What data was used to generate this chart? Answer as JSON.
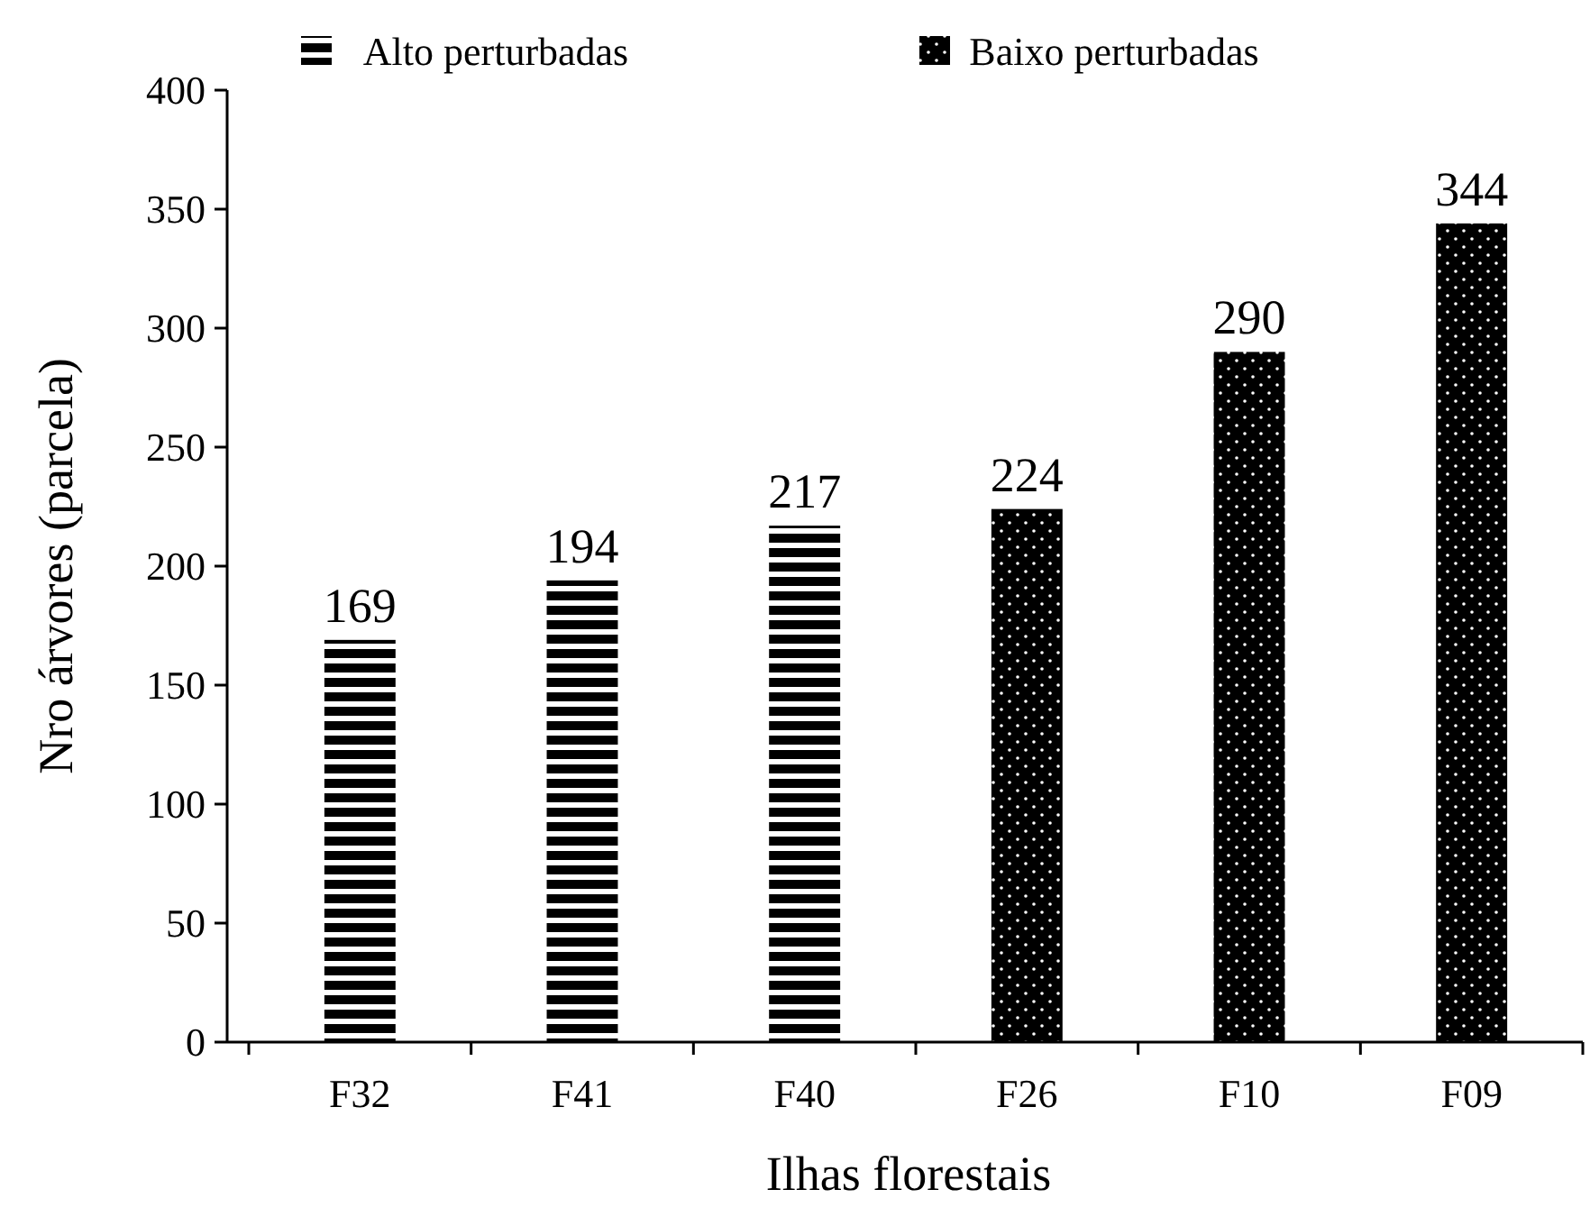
{
  "chart_data": {
    "type": "bar",
    "xlabel": "Ilhas florestais",
    "ylabel": "Nro árvores (parcela)",
    "categories": [
      "F32",
      "F41",
      "F40",
      "F26",
      "F10",
      "F09"
    ],
    "series": [
      {
        "name": "Alto perturbadas",
        "color": "#000000",
        "values": [
          169,
          194,
          217,
          null,
          null,
          null
        ]
      },
      {
        "name": "Baixo perturbadas",
        "color": "#000000",
        "values": [
          null,
          null,
          null,
          224,
          290,
          344
        ]
      }
    ],
    "ylim": [
      0,
      400
    ],
    "yticks": [
      0,
      50,
      100,
      150,
      200,
      250,
      300,
      350,
      400
    ],
    "data_labels": true,
    "legend": "top",
    "grid": false
  }
}
